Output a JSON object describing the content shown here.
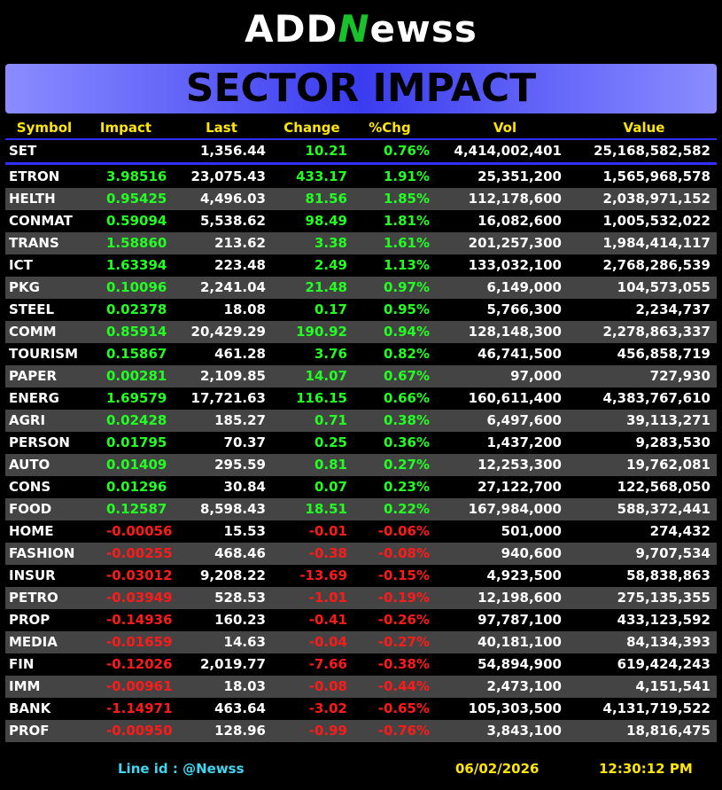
{
  "logo": {
    "prefix": "ADD",
    "mark": "N",
    "suffix": "ewss"
  },
  "title": "SECTOR IMPACT",
  "table": {
    "headers": [
      "Symbol",
      "Impact",
      "Last",
      "Change",
      "%Chg",
      "Vol",
      "Value"
    ],
    "index_row": [
      "SET",
      "",
      "1,356.44",
      "10.21",
      "0.76%",
      "4,414,002,401",
      "25,168,582,582"
    ],
    "rows": [
      [
        "ETRON",
        "3.98516",
        "23,075.43",
        "433.17",
        "1.91%",
        "25,351,200",
        "1,565,968,578"
      ],
      [
        "HELTH",
        "0.95425",
        "4,496.03",
        "81.56",
        "1.85%",
        "112,178,600",
        "2,038,971,152"
      ],
      [
        "CONMAT",
        "0.59094",
        "5,538.62",
        "98.49",
        "1.81%",
        "16,082,600",
        "1,005,532,022"
      ],
      [
        "TRANS",
        "1.58860",
        "213.62",
        "3.38",
        "1.61%",
        "201,257,300",
        "1,984,414,117"
      ],
      [
        "ICT",
        "1.63394",
        "223.48",
        "2.49",
        "1.13%",
        "133,032,100",
        "2,768,286,539"
      ],
      [
        "PKG",
        "0.10096",
        "2,241.04",
        "21.48",
        "0.97%",
        "6,149,000",
        "104,573,055"
      ],
      [
        "STEEL",
        "0.02378",
        "18.08",
        "0.17",
        "0.95%",
        "5,766,300",
        "2,234,737"
      ],
      [
        "COMM",
        "0.85914",
        "20,429.29",
        "190.92",
        "0.94%",
        "128,148,300",
        "2,278,863,337"
      ],
      [
        "TOURISM",
        "0.15867",
        "461.28",
        "3.76",
        "0.82%",
        "46,741,500",
        "456,858,719"
      ],
      [
        "PAPER",
        "0.00281",
        "2,109.85",
        "14.07",
        "0.67%",
        "97,000",
        "727,930"
      ],
      [
        "ENERG",
        "1.69579",
        "17,721.63",
        "116.15",
        "0.66%",
        "160,611,400",
        "4,383,767,610"
      ],
      [
        "AGRI",
        "0.02428",
        "185.27",
        "0.71",
        "0.38%",
        "6,497,600",
        "39,113,271"
      ],
      [
        "PERSON",
        "0.01795",
        "70.37",
        "0.25",
        "0.36%",
        "1,437,200",
        "9,283,530"
      ],
      [
        "AUTO",
        "0.01409",
        "295.59",
        "0.81",
        "0.27%",
        "12,253,300",
        "19,762,081"
      ],
      [
        "CONS",
        "0.01296",
        "30.84",
        "0.07",
        "0.23%",
        "27,122,700",
        "122,568,050"
      ],
      [
        "FOOD",
        "0.12587",
        "8,598.43",
        "18.51",
        "0.22%",
        "167,984,000",
        "588,372,441"
      ],
      [
        "HOME",
        "-0.00056",
        "15.53",
        "-0.01",
        "-0.06%",
        "501,000",
        "274,432"
      ],
      [
        "FASHION",
        "-0.00255",
        "468.46",
        "-0.38",
        "-0.08%",
        "940,600",
        "9,707,534"
      ],
      [
        "INSUR",
        "-0.03012",
        "9,208.22",
        "-13.69",
        "-0.15%",
        "4,923,500",
        "58,838,863"
      ],
      [
        "PETRO",
        "-0.03949",
        "528.53",
        "-1.01",
        "-0.19%",
        "12,198,600",
        "275,135,355"
      ],
      [
        "PROP",
        "-0.14936",
        "160.23",
        "-0.41",
        "-0.26%",
        "97,787,100",
        "433,123,592"
      ],
      [
        "MEDIA",
        "-0.01659",
        "14.63",
        "-0.04",
        "-0.27%",
        "40,181,100",
        "84,134,393"
      ],
      [
        "FIN",
        "-0.12026",
        "2,019.77",
        "-7.66",
        "-0.38%",
        "54,894,900",
        "619,424,243"
      ],
      [
        "IMM",
        "-0.00961",
        "18.03",
        "-0.08",
        "-0.44%",
        "2,473,100",
        "4,151,541"
      ],
      [
        "BANK",
        "-1.14971",
        "463.64",
        "-3.02",
        "-0.65%",
        "105,303,500",
        "4,131,719,522"
      ],
      [
        "PROF",
        "-0.00950",
        "128.96",
        "-0.99",
        "-0.76%",
        "3,843,100",
        "18,816,475"
      ]
    ]
  },
  "footer": {
    "line_label": "Line id  : @Newss",
    "date": "06/02/2026",
    "time": "12:30:12 PM"
  }
}
